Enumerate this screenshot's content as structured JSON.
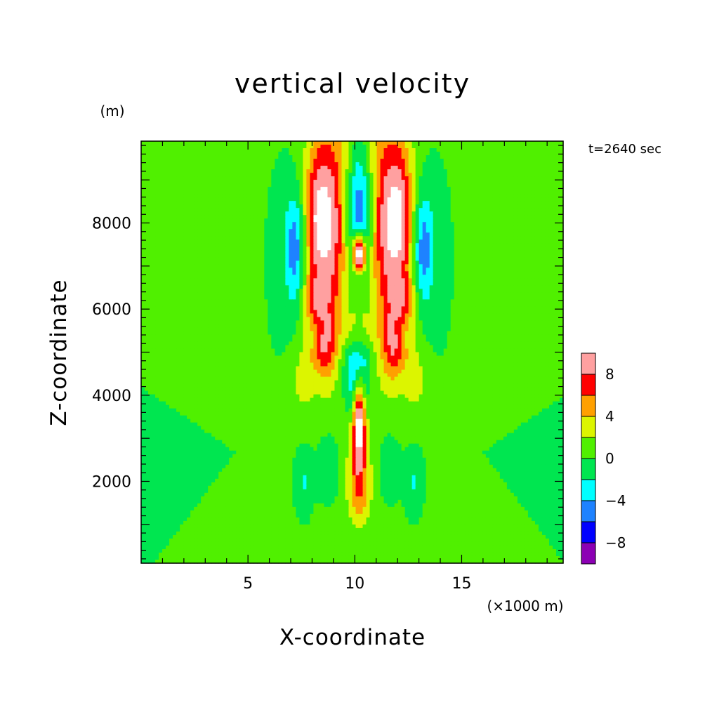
{
  "chart_data": {
    "type": "heatmap",
    "title": "vertical velocity",
    "xlabel": "X-coordinate",
    "ylabel": "Z-coordinate",
    "x_unit": "(×1000 m)",
    "y_unit": "(m)",
    "time_label": "t=2640 sec",
    "xlim": [
      0,
      19.75
    ],
    "ylim": [
      100,
      9900
    ],
    "x_ticks": [
      5,
      10,
      15
    ],
    "y_ticks": [
      2000,
      4000,
      6000,
      8000
    ],
    "colorbar": {
      "levels": [
        -10,
        -8,
        -6,
        -4,
        -2,
        0,
        2,
        4,
        6,
        8,
        10
      ],
      "colors": [
        "#8c00b4",
        "#0000ff",
        "#1e82ff",
        "#00ffff",
        "#00e650",
        "#50f000",
        "#dcf500",
        "#ffa000",
        "#ff0000",
        "#ffa0a0"
      ],
      "tick_values": [
        -8,
        -4,
        0,
        4,
        8
      ],
      "tick_labels": [
        "−8",
        "−4",
        "0",
        "4",
        "8"
      ],
      "overflow_color": "#ffffff"
    },
    "contour_features": [
      {
        "kind": "gaussian",
        "x": 8.7,
        "z": 8000,
        "sx": 0.7,
        "sz": 1700,
        "amp": 10.5
      },
      {
        "kind": "gaussian",
        "x": 11.7,
        "z": 8000,
        "sx": 0.7,
        "sz": 1700,
        "amp": 10.5
      },
      {
        "kind": "gaussian",
        "x": 8.2,
        "z": 8200,
        "sx": 0.3,
        "sz": 900,
        "amp": 2.5
      },
      {
        "kind": "gaussian",
        "x": 12.2,
        "z": 8200,
        "sx": 0.3,
        "sz": 900,
        "amp": 2.5
      },
      {
        "kind": "gaussian",
        "x": 10.2,
        "z": 8300,
        "sx": 0.5,
        "sz": 1100,
        "amp": -7.5
      },
      {
        "kind": "gaussian",
        "x": 10.2,
        "z": 7300,
        "sx": 0.2,
        "sz": 300,
        "amp": 14
      },
      {
        "kind": "gaussian",
        "x": 7.2,
        "z": 7400,
        "sx": 0.35,
        "sz": 950,
        "amp": -6
      },
      {
        "kind": "gaussian",
        "x": 13.2,
        "z": 7400,
        "sx": 0.35,
        "sz": 950,
        "amp": -6
      },
      {
        "kind": "gaussian",
        "x": 8.2,
        "z": 6200,
        "sx": 0.45,
        "sz": 400,
        "amp": 4
      },
      {
        "kind": "gaussian",
        "x": 12.2,
        "z": 6200,
        "sx": 0.45,
        "sz": 400,
        "amp": 4
      },
      {
        "kind": "gaussian",
        "x": 8.6,
        "z": 5100,
        "sx": 0.35,
        "sz": 500,
        "amp": 5
      },
      {
        "kind": "gaussian",
        "x": 11.8,
        "z": 5100,
        "sx": 0.35,
        "sz": 500,
        "amp": 5
      },
      {
        "kind": "gaussian",
        "x": 7.6,
        "z": 4600,
        "sx": 0.35,
        "sz": 600,
        "amp": 2.2
      },
      {
        "kind": "gaussian",
        "x": 12.8,
        "z": 4600,
        "sx": 0.35,
        "sz": 600,
        "amp": 2.2
      },
      {
        "kind": "gaussian",
        "x": 10.1,
        "z": 4200,
        "sx": 0.45,
        "sz": 550,
        "amp": -6
      },
      {
        "kind": "gaussian",
        "x": 10.1,
        "z": 4850,
        "sx": 0.45,
        "sz": 300,
        "amp": -3.5
      },
      {
        "kind": "gaussian",
        "x": 10.2,
        "z": 3500,
        "sx": 0.2,
        "sz": 700,
        "amp": 10.5
      },
      {
        "kind": "gaussian",
        "x": 10.2,
        "z": 2000,
        "sx": 0.3,
        "sz": 700,
        "amp": 4.8
      },
      {
        "kind": "gaussian",
        "x": 8.8,
        "z": 2300,
        "sx": 0.4,
        "sz": 600,
        "amp": -3.2
      },
      {
        "kind": "gaussian",
        "x": 11.6,
        "z": 2300,
        "sx": 0.4,
        "sz": 600,
        "amp": -3.2
      },
      {
        "kind": "gaussian",
        "x": 7.6,
        "z": 2000,
        "sx": 0.35,
        "sz": 600,
        "amp": -3
      },
      {
        "kind": "gaussian",
        "x": 12.8,
        "z": 2000,
        "sx": 0.35,
        "sz": 600,
        "amp": -3
      },
      {
        "kind": "gaussian",
        "x": 10.2,
        "z": 700,
        "sx": 1.4,
        "sz": 400,
        "amp": -1.5
      },
      {
        "kind": "gaussian",
        "x": 8.8,
        "z": 300,
        "sx": 0.4,
        "sz": 400,
        "amp": 0.9
      },
      {
        "kind": "gaussian",
        "x": 11.6,
        "z": 300,
        "sx": 0.4,
        "sz": 400,
        "amp": 0.9
      },
      {
        "kind": "band",
        "x": 9.7,
        "z": 9600,
        "sx": 0.35,
        "sz": 800,
        "amp": 1.2
      },
      {
        "kind": "band",
        "x": 10.7,
        "z": 9600,
        "sx": 0.35,
        "sz": 800,
        "amp": 1.2
      },
      {
        "kind": "band",
        "x": 10.2,
        "z": 2800,
        "sx": 0.9,
        "sz": 3600,
        "amp": 1.0
      },
      {
        "kind": "wedge",
        "x": 10.2,
        "z": 5500,
        "sx": 8.0,
        "sz": 5400,
        "amp": 0.9
      }
    ]
  }
}
